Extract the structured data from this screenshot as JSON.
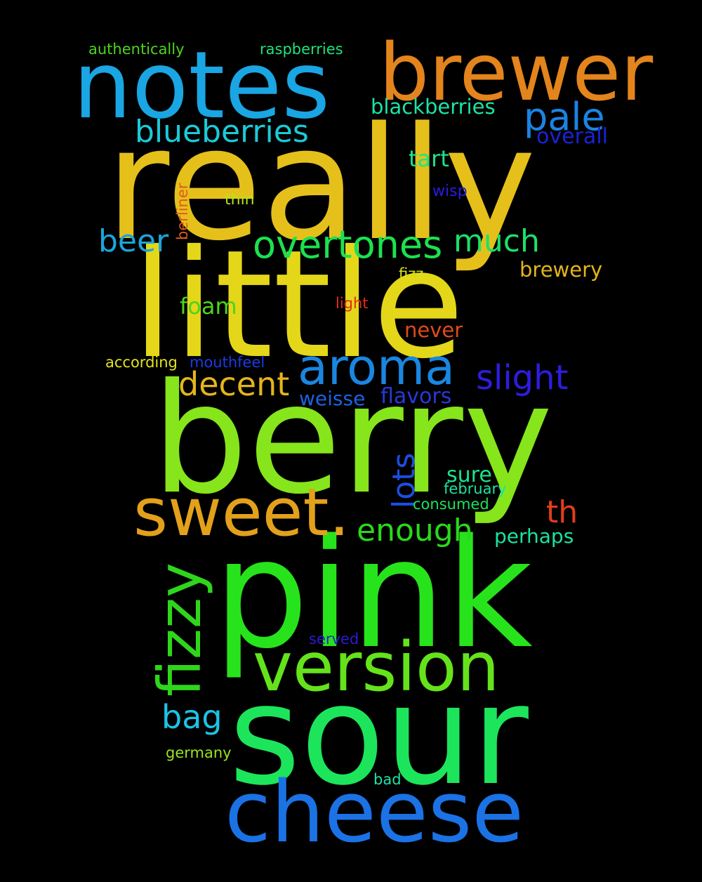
{
  "words": {
    "really": {
      "text": "really",
      "color": "#e5c01b"
    },
    "little": {
      "text": "little",
      "color": "#e4d719"
    },
    "berry": {
      "text": "berry",
      "color": "#86e51b"
    },
    "pink": {
      "text": "pink",
      "color": "#27e31b"
    },
    "sour": {
      "text": "sour",
      "color": "#1ce55b"
    },
    "notes": {
      "text": "notes",
      "color": "#1aa5e3"
    },
    "brewer": {
      "text": "brewer",
      "color": "#e3841c"
    },
    "cheese": {
      "text": "cheese",
      "color": "#1b72e5"
    },
    "version": {
      "text": "version",
      "color": "#64e31b"
    },
    "sweet": {
      "text": "sweet.",
      "color": "#e3a11b"
    },
    "aroma": {
      "text": "aroma",
      "color": "#1a86e0"
    },
    "fizzy": {
      "text": "fizzy",
      "color": "#2ed61b"
    },
    "overtones": {
      "text": "overtones",
      "color": "#1ce150"
    },
    "blueberries": {
      "text": "blueberries",
      "color": "#1bcad8"
    },
    "pale": {
      "text": "pale",
      "color": "#1b84e3"
    },
    "slight": {
      "text": "slight",
      "color": "#2d1de0"
    },
    "decent": {
      "text": "decent",
      "color": "#e4b51b"
    },
    "enough": {
      "text": "enough",
      "color": "#29d91b"
    },
    "much": {
      "text": "much",
      "color": "#1ce16a"
    },
    "beer": {
      "text": "beer",
      "color": "#1ba5d9"
    },
    "lots": {
      "text": "lots",
      "color": "#1b4fe3"
    },
    "th": {
      "text": "th",
      "color": "#e33d1b"
    },
    "bag": {
      "text": "bag",
      "color": "#1bc4e5"
    },
    "blackberries": {
      "text": "blackberries",
      "color": "#1be3a5"
    },
    "tart": {
      "text": "tart",
      "color": "#1be389"
    },
    "overall": {
      "text": "overall",
      "color": "#1b22d8"
    },
    "brewery": {
      "text": "brewery",
      "color": "#e3b51b"
    },
    "foam": {
      "text": "foam",
      "color": "#4ed41b"
    },
    "never": {
      "text": "never",
      "color": "#e04a1b"
    },
    "flavors": {
      "text": "flavors",
      "color": "#2739d8"
    },
    "weisse": {
      "text": "weisse",
      "color": "#1b62e3"
    },
    "sure": {
      "text": "sure",
      "color": "#1be38a"
    },
    "perhaps": {
      "text": "perhaps",
      "color": "#1be3a0"
    },
    "authentically": {
      "text": "authentically",
      "color": "#4ed41b"
    },
    "raspberries": {
      "text": "raspberries",
      "color": "#1be37a"
    },
    "berliner": {
      "text": "berliner",
      "color": "#e05a1b"
    },
    "thin": {
      "text": "thin",
      "color": "#b5e31b"
    },
    "wisp": {
      "text": "wisp",
      "color": "#2a1be0"
    },
    "fizz": {
      "text": "fizz",
      "color": "#d4e31b"
    },
    "light": {
      "text": "light",
      "color": "#e32a1b"
    },
    "according": {
      "text": "according",
      "color": "#e3e31b"
    },
    "mouthfeel": {
      "text": "mouthfeel",
      "color": "#1b3ae3"
    },
    "february": {
      "text": "february",
      "color": "#1be3a0"
    },
    "consumed": {
      "text": "consumed",
      "color": "#1be35a"
    },
    "served": {
      "text": "served",
      "color": "#2a1bd4"
    },
    "germany": {
      "text": "germany",
      "color": "#9be31b"
    },
    "bad": {
      "text": "bad",
      "color": "#1be3a5"
    }
  }
}
